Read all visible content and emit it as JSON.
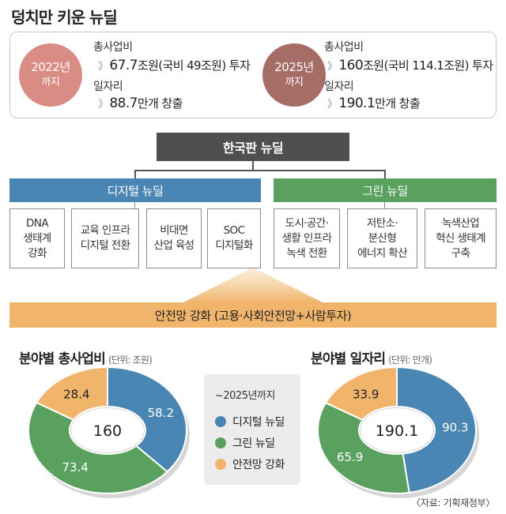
{
  "title": "덩치만 키운 뉴딜",
  "summary": {
    "left": {
      "year": "2022년",
      "suffix": "까지",
      "budget_label": "총사업비",
      "budget_value_num": "67.7",
      "budget_value_rest": "조원(국비 49조원) 투자",
      "jobs_label": "일자리",
      "jobs_value_num": "88.7",
      "jobs_value_rest": "만개 창출"
    },
    "right": {
      "year": "2025년",
      "suffix": "까지",
      "budget_label": "총사업비",
      "budget_value_num": "160",
      "budget_value_rest": "조원(국비 114.1조원) 투자",
      "jobs_label": "일자리",
      "jobs_value_num": "190.1",
      "jobs_value_rest": "만개 창출"
    },
    "chevron": "》"
  },
  "diagram": {
    "main": "한국판 뉴딜",
    "digital": {
      "label": "디지털 뉴딜",
      "items": [
        "DNA\n생태계\n강화",
        "교육 인프라\n디지털 전환",
        "비대면\n산업 육성",
        "SOC\n디지털화"
      ]
    },
    "green": {
      "label": "그린 뉴딜",
      "items": [
        "도시·공간·\n생활 인프라\n녹색 전환",
        "저탄소·\n분산형\n에너지 확산",
        "녹색산업\n혁신 생태계\n구축"
      ]
    },
    "safety": "안전망 강화 (고용·사회안전망+사람투자)"
  },
  "charts": {
    "budget_title": "분야별 총사업비",
    "budget_unit": "(단위: 조원)",
    "jobs_title": "분야별 일자리",
    "jobs_unit": "(단위: 만개)"
  },
  "legend": {
    "heading": "~2025년까지",
    "items": [
      "디지털 뉴딜",
      "그린 뉴딜",
      "안전망 강화"
    ]
  },
  "colors": {
    "digital": "#4a86b4",
    "green": "#5aa15f",
    "safety": "#f0b46b"
  },
  "source": "〈자료: 기획재정부〉",
  "chart_data": [
    {
      "type": "pie",
      "title": "분야별 총사업비",
      "unit": "(단위: 조원)",
      "total": "160",
      "categories": [
        "디지털 뉴딜",
        "그린 뉴딜",
        "안전망 강화"
      ],
      "values": [
        58.2,
        73.4,
        28.4
      ]
    },
    {
      "type": "pie",
      "title": "분야별 일자리",
      "unit": "(단위: 만개)",
      "total": "190.1",
      "categories": [
        "디지털 뉴딜",
        "그린 뉴딜",
        "안전망 강화"
      ],
      "values": [
        90.3,
        65.9,
        33.9
      ]
    }
  ]
}
